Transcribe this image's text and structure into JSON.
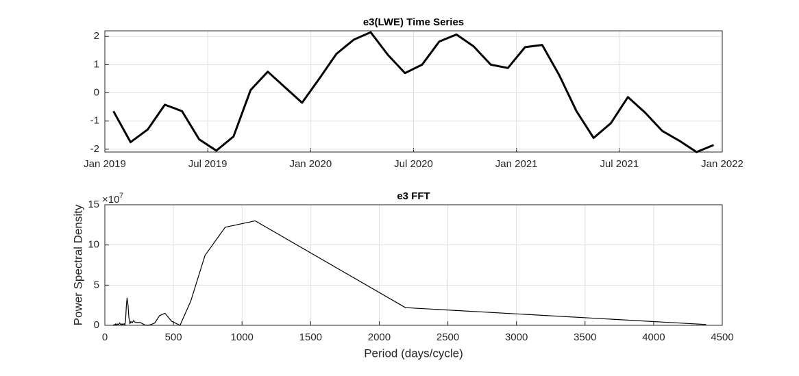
{
  "chart_data": [
    {
      "type": "line",
      "title": "e3(LWE) Time Series",
      "x": [
        "2019-01",
        "2019-02",
        "2019-03",
        "2019-04",
        "2019-05",
        "2019-06",
        "2019-07",
        "2019-08",
        "2019-09",
        "2019-10",
        "2019-11",
        "2019-12",
        "2020-01",
        "2020-02",
        "2020-03",
        "2020-04",
        "2020-05",
        "2020-06",
        "2020-07",
        "2020-08",
        "2020-09",
        "2020-10",
        "2020-11",
        "2020-12",
        "2021-01",
        "2021-02",
        "2021-03",
        "2021-04",
        "2021-05",
        "2021-06",
        "2021-07",
        "2021-08",
        "2021-09",
        "2021-10",
        "2021-11",
        "2021-12"
      ],
      "series": [
        {
          "name": "e3",
          "color": "#000000",
          "values": [
            -0.65,
            -1.75,
            -1.3,
            -0.42,
            -0.65,
            -1.65,
            -2.05,
            -1.55,
            0.1,
            0.75,
            0.2,
            -0.35,
            0.5,
            1.38,
            1.88,
            2.15,
            1.35,
            0.7,
            1.0,
            1.82,
            2.07,
            1.65,
            1.0,
            0.88,
            1.62,
            1.7,
            0.62,
            -0.65,
            -1.6,
            -1.08,
            -0.15,
            -0.7,
            -1.35,
            -1.7,
            -2.1,
            -1.85
          ]
        }
      ],
      "xlim": [
        "2019-01",
        "2022-01"
      ],
      "xticks": [
        {
          "value": "2019-01",
          "label": "Jan 2019"
        },
        {
          "value": "2019-07",
          "label": "Jul 2019"
        },
        {
          "value": "2020-01",
          "label": "Jan 2020"
        },
        {
          "value": "2020-07",
          "label": "Jul 2020"
        },
        {
          "value": "2021-01",
          "label": "Jan 2021"
        },
        {
          "value": "2021-07",
          "label": "Jul 2021"
        },
        {
          "value": "2022-01",
          "label": "Jan 2022"
        }
      ],
      "ylim": [
        -2.1,
        2.2
      ],
      "yticks": [
        -2,
        -1,
        0,
        1,
        2
      ],
      "grid": true
    },
    {
      "type": "line",
      "title": "e3 FFT",
      "xlabel": "Period (days/cycle)",
      "ylabel": "Power Spectral Density",
      "y_exponent": {
        "base": "×10",
        "power": "7"
      },
      "x": [
        60,
        63,
        66,
        70,
        75,
        80,
        86,
        92,
        100,
        108,
        115,
        122,
        125,
        129,
        133,
        137,
        141,
        146,
        151,
        157,
        162,
        169,
        175,
        183,
        190,
        199,
        209,
        219,
        230,
        243,
        258,
        274,
        292,
        313,
        337,
        365,
        398,
        438,
        487,
        548,
        626,
        730,
        877,
        1096,
        2191,
        4383
      ],
      "series": [
        {
          "name": "e3",
          "color": "#000000",
          "values": [
            0,
            500000,
            0,
            1000000,
            500000,
            2000000,
            0,
            1500000,
            1000000,
            3000000,
            1000000,
            1000000,
            2000000,
            500000,
            1000000,
            1500000,
            2000000,
            0,
            6000000,
            25000000,
            34000000,
            25000000,
            10000000,
            2000000,
            5000000,
            3000000,
            6000000,
            4000000,
            3500000,
            3500000,
            3500000,
            2000000,
            500000,
            0,
            1000000,
            3000000,
            12000000,
            15000000,
            5000000,
            0,
            30000000,
            87000000,
            122000000,
            130000000,
            22000000,
            1000000
          ]
        }
      ],
      "xlim": [
        0,
        4500
      ],
      "xticks": [
        0,
        500,
        1000,
        1500,
        2000,
        2500,
        3000,
        3500,
        4000,
        4500
      ],
      "ylim": [
        0,
        150000000
      ],
      "yticks": [
        {
          "value": 0,
          "label": "0"
        },
        {
          "value": 50000000,
          "label": "5"
        },
        {
          "value": 100000000,
          "label": "10"
        },
        {
          "value": 150000000,
          "label": "15"
        }
      ],
      "grid": true
    }
  ]
}
